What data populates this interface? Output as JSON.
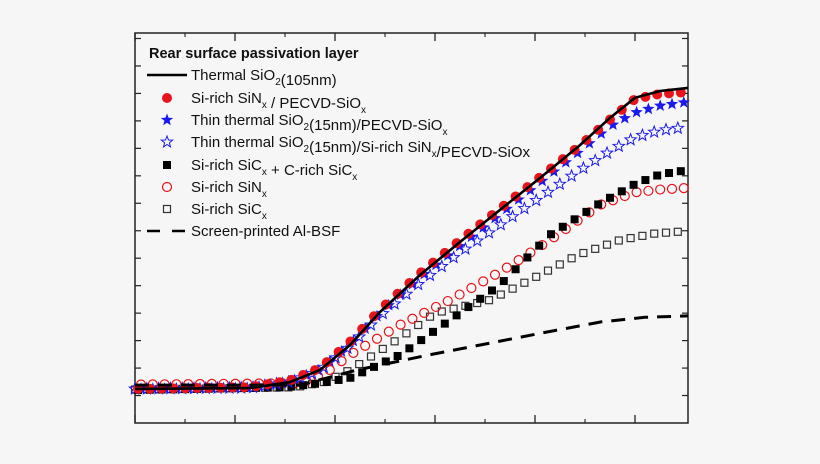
{
  "chart_data": {
    "type": "scatter",
    "title": "",
    "xlabel": "",
    "ylabel": "",
    "xlim": [
      0,
      5.53
    ],
    "ylim": [
      0,
      14.2
    ],
    "x_major_ticks": [
      0,
      1,
      2,
      3,
      4,
      5
    ],
    "x_minor_ticks": [
      0.5,
      1.5,
      2.5,
      3.5,
      4.5
    ],
    "y_ticks": [
      1,
      2,
      3,
      4,
      5,
      6,
      7,
      8,
      9,
      10,
      11,
      12,
      13,
      14
    ],
    "tick_labels_shown": false,
    "grid": false,
    "legend": {
      "placement": "top-left",
      "title": "Rear surface passivation layer"
    },
    "series": [
      {
        "name": "Thermal SiO2(105nm)",
        "label": [
          {
            "t": "Thermal SiO"
          },
          {
            "t": "2",
            "sub": true
          },
          {
            "t": "(105nm)"
          }
        ],
        "style": "solid-line",
        "color": "#000000",
        "points": [
          [
            0,
            1.24
          ],
          [
            1.15,
            1.27
          ],
          [
            1.55,
            1.49
          ],
          [
            1.85,
            1.93
          ],
          [
            2.15,
            2.84
          ],
          [
            2.45,
            4.04
          ],
          [
            2.85,
            5.39
          ],
          [
            3.25,
            6.59
          ],
          [
            3.65,
            7.76
          ],
          [
            4.05,
            8.92
          ],
          [
            4.45,
            10.12
          ],
          [
            4.75,
            11.11
          ],
          [
            5.0,
            11.84
          ],
          [
            5.25,
            12.09
          ],
          [
            5.53,
            12.2
          ]
        ]
      },
      {
        "name": "Si-rich SiNx / PECVD-SiOx",
        "label": [
          {
            "t": "Si-rich SiN"
          },
          {
            "t": "x",
            "sub": true
          },
          {
            "t": " / PECVD-SiO"
          },
          {
            "t": "x",
            "sub": true
          }
        ],
        "style": "filled-circle",
        "color": "#e8141c",
        "points": [
          [
            0,
            1.24
          ],
          [
            1.15,
            1.3
          ],
          [
            1.55,
            1.55
          ],
          [
            1.85,
            2.0
          ],
          [
            2.15,
            2.95
          ],
          [
            2.45,
            4.12
          ],
          [
            2.85,
            5.45
          ],
          [
            3.25,
            6.65
          ],
          [
            3.65,
            7.8
          ],
          [
            4.05,
            8.95
          ],
          [
            4.45,
            10.1
          ],
          [
            4.75,
            11.05
          ],
          [
            5.0,
            11.8
          ],
          [
            5.25,
            11.98
          ],
          [
            5.53,
            12.05
          ]
        ]
      },
      {
        "name": "Thin thermal SiO2(15nm)/PECVD-SiOx",
        "label": [
          {
            "t": "Thin thermal SiO"
          },
          {
            "t": "2",
            "sub": true
          },
          {
            "t": "(15nm)/PECVD-SiO"
          },
          {
            "t": "x",
            "sub": true
          }
        ],
        "style": "filled-star",
        "color": "#1a1aee",
        "points": [
          [
            0,
            1.24
          ],
          [
            1.15,
            1.28
          ],
          [
            1.55,
            1.5
          ],
          [
            1.85,
            1.95
          ],
          [
            2.15,
            2.85
          ],
          [
            2.45,
            4.0
          ],
          [
            2.85,
            5.3
          ],
          [
            3.25,
            6.45
          ],
          [
            3.65,
            7.6
          ],
          [
            4.05,
            8.75
          ],
          [
            4.45,
            9.9
          ],
          [
            4.75,
            10.8
          ],
          [
            5.0,
            11.3
          ],
          [
            5.25,
            11.55
          ],
          [
            5.53,
            11.69
          ]
        ]
      },
      {
        "name": "Thin thermal SiO2(15nm)/Si-rich SiNx/PECVD-SiOx",
        "label": [
          {
            "t": "Thin thermal SiO"
          },
          {
            "t": "2",
            "sub": true
          },
          {
            "t": "(15nm)/Si-rich SiN"
          },
          {
            "t": "x",
            "sub": true
          },
          {
            "t": "/PECVD-SiOx"
          }
        ],
        "style": "open-star",
        "color": "#1a1aee",
        "points": [
          [
            0,
            1.24
          ],
          [
            1.15,
            1.28
          ],
          [
            1.55,
            1.5
          ],
          [
            1.85,
            1.92
          ],
          [
            2.15,
            2.8
          ],
          [
            2.45,
            3.9
          ],
          [
            2.85,
            5.1
          ],
          [
            3.25,
            6.2
          ],
          [
            3.65,
            7.2
          ],
          [
            4.05,
            8.2
          ],
          [
            4.45,
            9.2
          ],
          [
            4.75,
            9.9
          ],
          [
            5.0,
            10.4
          ],
          [
            5.25,
            10.65
          ],
          [
            5.53,
            10.78
          ]
        ]
      },
      {
        "name": "Si-rich SiCx + C-rich SiCx",
        "label": [
          {
            "t": "Si-rich SiC"
          },
          {
            "t": "x",
            "sub": true
          },
          {
            "t": " + C-rich SiC"
          },
          {
            "t": "x",
            "sub": true
          }
        ],
        "style": "filled-square",
        "color": "#000000",
        "points": [
          [
            0,
            1.2
          ],
          [
            1.5,
            1.3
          ],
          [
            1.85,
            1.45
          ],
          [
            2.15,
            1.64
          ],
          [
            2.65,
            2.48
          ],
          [
            3.15,
            3.75
          ],
          [
            3.65,
            5.03
          ],
          [
            4.15,
            6.85
          ],
          [
            4.65,
            8.0
          ],
          [
            5.0,
            8.7
          ],
          [
            5.25,
            9.05
          ],
          [
            5.53,
            9.21
          ]
        ]
      },
      {
        "name": "Si-rich SiNx",
        "label": [
          {
            "t": "Si-rich SiN"
          },
          {
            "t": "x",
            "sub": true
          }
        ],
        "style": "open-circle",
        "color": "#e8141c",
        "points": [
          [
            0,
            1.4
          ],
          [
            1.65,
            1.45
          ],
          [
            1.9,
            1.8
          ],
          [
            2.15,
            2.48
          ],
          [
            2.65,
            3.57
          ],
          [
            3.15,
            4.48
          ],
          [
            3.65,
            5.5
          ],
          [
            4.15,
            6.66
          ],
          [
            4.65,
            7.94
          ],
          [
            5.0,
            8.4
          ],
          [
            5.25,
            8.5
          ],
          [
            5.53,
            8.56
          ]
        ]
      },
      {
        "name": "Si-rich SiCx",
        "label": [
          {
            "t": "Si-rich SiC"
          },
          {
            "t": "x",
            "sub": true
          }
        ],
        "style": "open-square",
        "color": "#333333",
        "points": [
          [
            0,
            1.22
          ],
          [
            1.6,
            1.3
          ],
          [
            1.9,
            1.5
          ],
          [
            2.15,
            1.93
          ],
          [
            2.65,
            3.1
          ],
          [
            3.0,
            4.0
          ],
          [
            3.55,
            4.48
          ],
          [
            4.0,
            5.3
          ],
          [
            4.43,
            6.12
          ],
          [
            4.85,
            6.66
          ],
          [
            5.2,
            6.9
          ],
          [
            5.53,
            6.99
          ]
        ]
      },
      {
        "name": "Screen-printed Al-BSF",
        "label": [
          {
            "t": "Screen-printed Al-BSF"
          }
        ],
        "style": "dashed-line",
        "color": "#000000",
        "points": [
          [
            0,
            1.38
          ],
          [
            1.65,
            1.38
          ],
          [
            2.22,
            1.93
          ],
          [
            2.9,
            2.45
          ],
          [
            3.55,
            2.91
          ],
          [
            4.1,
            3.3
          ],
          [
            4.66,
            3.68
          ],
          [
            5.1,
            3.85
          ],
          [
            5.53,
            3.9
          ]
        ]
      }
    ]
  }
}
